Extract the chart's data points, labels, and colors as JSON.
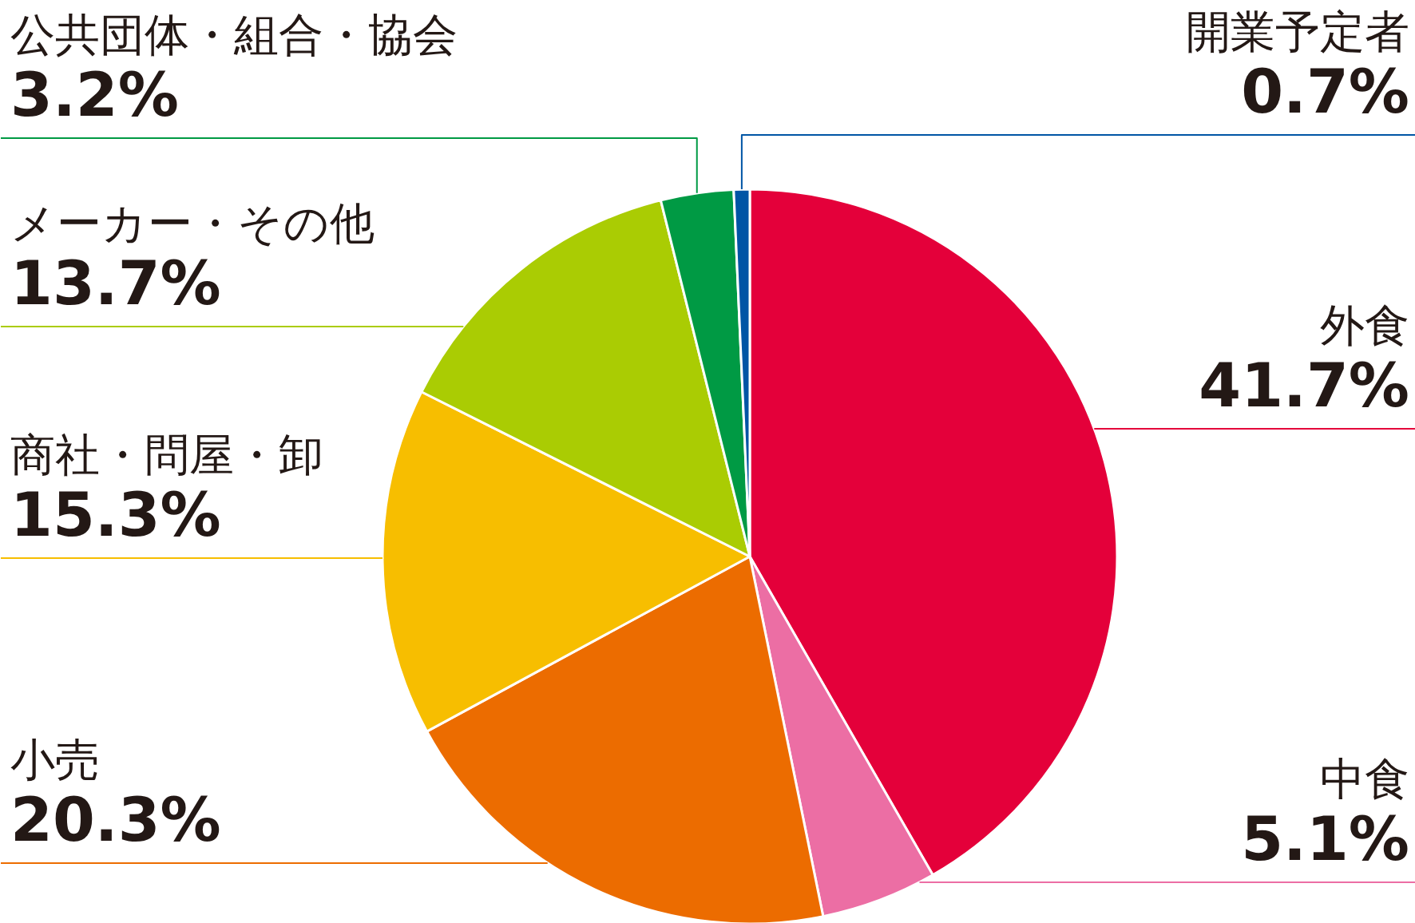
{
  "chart_data": {
    "type": "pie",
    "categories": [
      "外食",
      "中食",
      "小売",
      "商社・問屋・卸",
      "メーカー・その他",
      "公共団体・組合・協会",
      "開業予定者"
    ],
    "values": [
      41.7,
      5.1,
      20.3,
      15.3,
      13.7,
      3.2,
      0.7
    ],
    "colors": [
      "#e4003a",
      "#ec6ea4",
      "#ec6c00",
      "#f7be00",
      "#aacc03",
      "#009a44",
      "#0055a5"
    ],
    "value_labels": [
      "41.7%",
      "5.1%",
      "20.3%",
      "15.3%",
      "13.7%",
      "3.2%",
      "0.7%"
    ]
  }
}
